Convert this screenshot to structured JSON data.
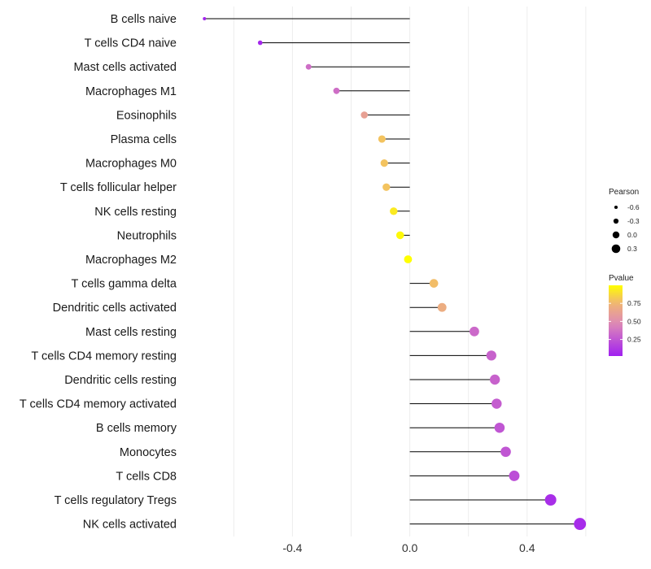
{
  "chart_data": {
    "type": "lollipop",
    "title": "",
    "xlabel": "",
    "ylabel": "",
    "xlim": [
      -0.77,
      0.8
    ],
    "x_ticks": [
      -0.4,
      0.0,
      0.4
    ],
    "x_tick_labels": [
      "-0.4",
      "0.0",
      "0.4"
    ],
    "grid": true,
    "categories": [
      "B cells naive",
      "T cells CD4 naive",
      "Mast cells activated",
      "Macrophages M1",
      "Eosinophils",
      "Plasma cells",
      "Macrophages M0",
      "T cells follicular helper",
      "NK cells resting",
      "Neutrophils",
      "Macrophages M2",
      "T cells gamma delta",
      "Dendritic cells activated",
      "Mast cells resting",
      "T cells CD4 memory resting",
      "Dendritic cells resting",
      "T cells CD4 memory activated",
      "B cells memory",
      "Monocytes",
      "T cells CD8",
      "T cells regulatory  Tregs",
      "NK cells activated"
    ],
    "values": [
      -0.7,
      -0.51,
      -0.345,
      -0.25,
      -0.155,
      -0.095,
      -0.087,
      -0.08,
      -0.055,
      -0.033,
      -0.006,
      0.082,
      0.11,
      0.22,
      0.278,
      0.29,
      0.296,
      0.306,
      0.327,
      0.356,
      0.48,
      0.58
    ],
    "pvalues": [
      0.04,
      0.05,
      0.35,
      0.35,
      0.62,
      0.8,
      0.8,
      0.8,
      0.93,
      0.98,
      1.0,
      0.78,
      0.7,
      0.33,
      0.3,
      0.3,
      0.28,
      0.25,
      0.25,
      0.22,
      0.08,
      0.07
    ],
    "legend": {
      "size_title": "Pearson",
      "size_entries": [
        {
          "label": "-0.6",
          "value": -0.6
        },
        {
          "label": "-0.3",
          "value": -0.3
        },
        {
          "label": "0.0",
          "value": 0.0
        },
        {
          "label": "0.3",
          "value": 0.3
        }
      ],
      "color_title": "Pvalue",
      "color_ticks": [
        {
          "label": "0.75",
          "value": 0.75
        },
        {
          "label": "0.50",
          "value": 0.5
        },
        {
          "label": "0.25",
          "value": 0.25
        }
      ],
      "color_range": [
        0.02,
        1.0
      ],
      "placement": "right"
    },
    "colors": {
      "low": "#a020f0",
      "mid": "#dd88b8",
      "mid_high": "#f0b574",
      "high": "#ffff00",
      "stem": "#000000",
      "grid": "#ececec"
    }
  }
}
